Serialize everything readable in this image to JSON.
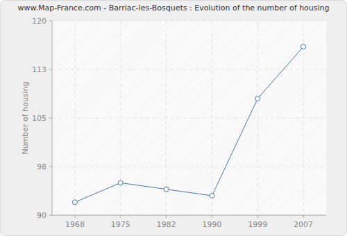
{
  "chart_data": {
    "type": "line",
    "title": "www.Map-France.com - Barriac-les-Bosquets : Evolution of the number of housing",
    "y_label": "Number of housing",
    "categories": [
      "1968",
      "1975",
      "1982",
      "1990",
      "1999",
      "2007"
    ],
    "values": [
      92,
      95,
      94,
      93,
      108,
      116
    ],
    "color": "#4a76a8",
    "marker": "circle",
    "ylim": [
      90,
      120
    ],
    "yticks": [
      90,
      {
        "value": 97.5,
        "label": "98"
      },
      105,
      {
        "value": 112.5,
        "label": "113"
      },
      120
    ],
    "grid": true
  }
}
